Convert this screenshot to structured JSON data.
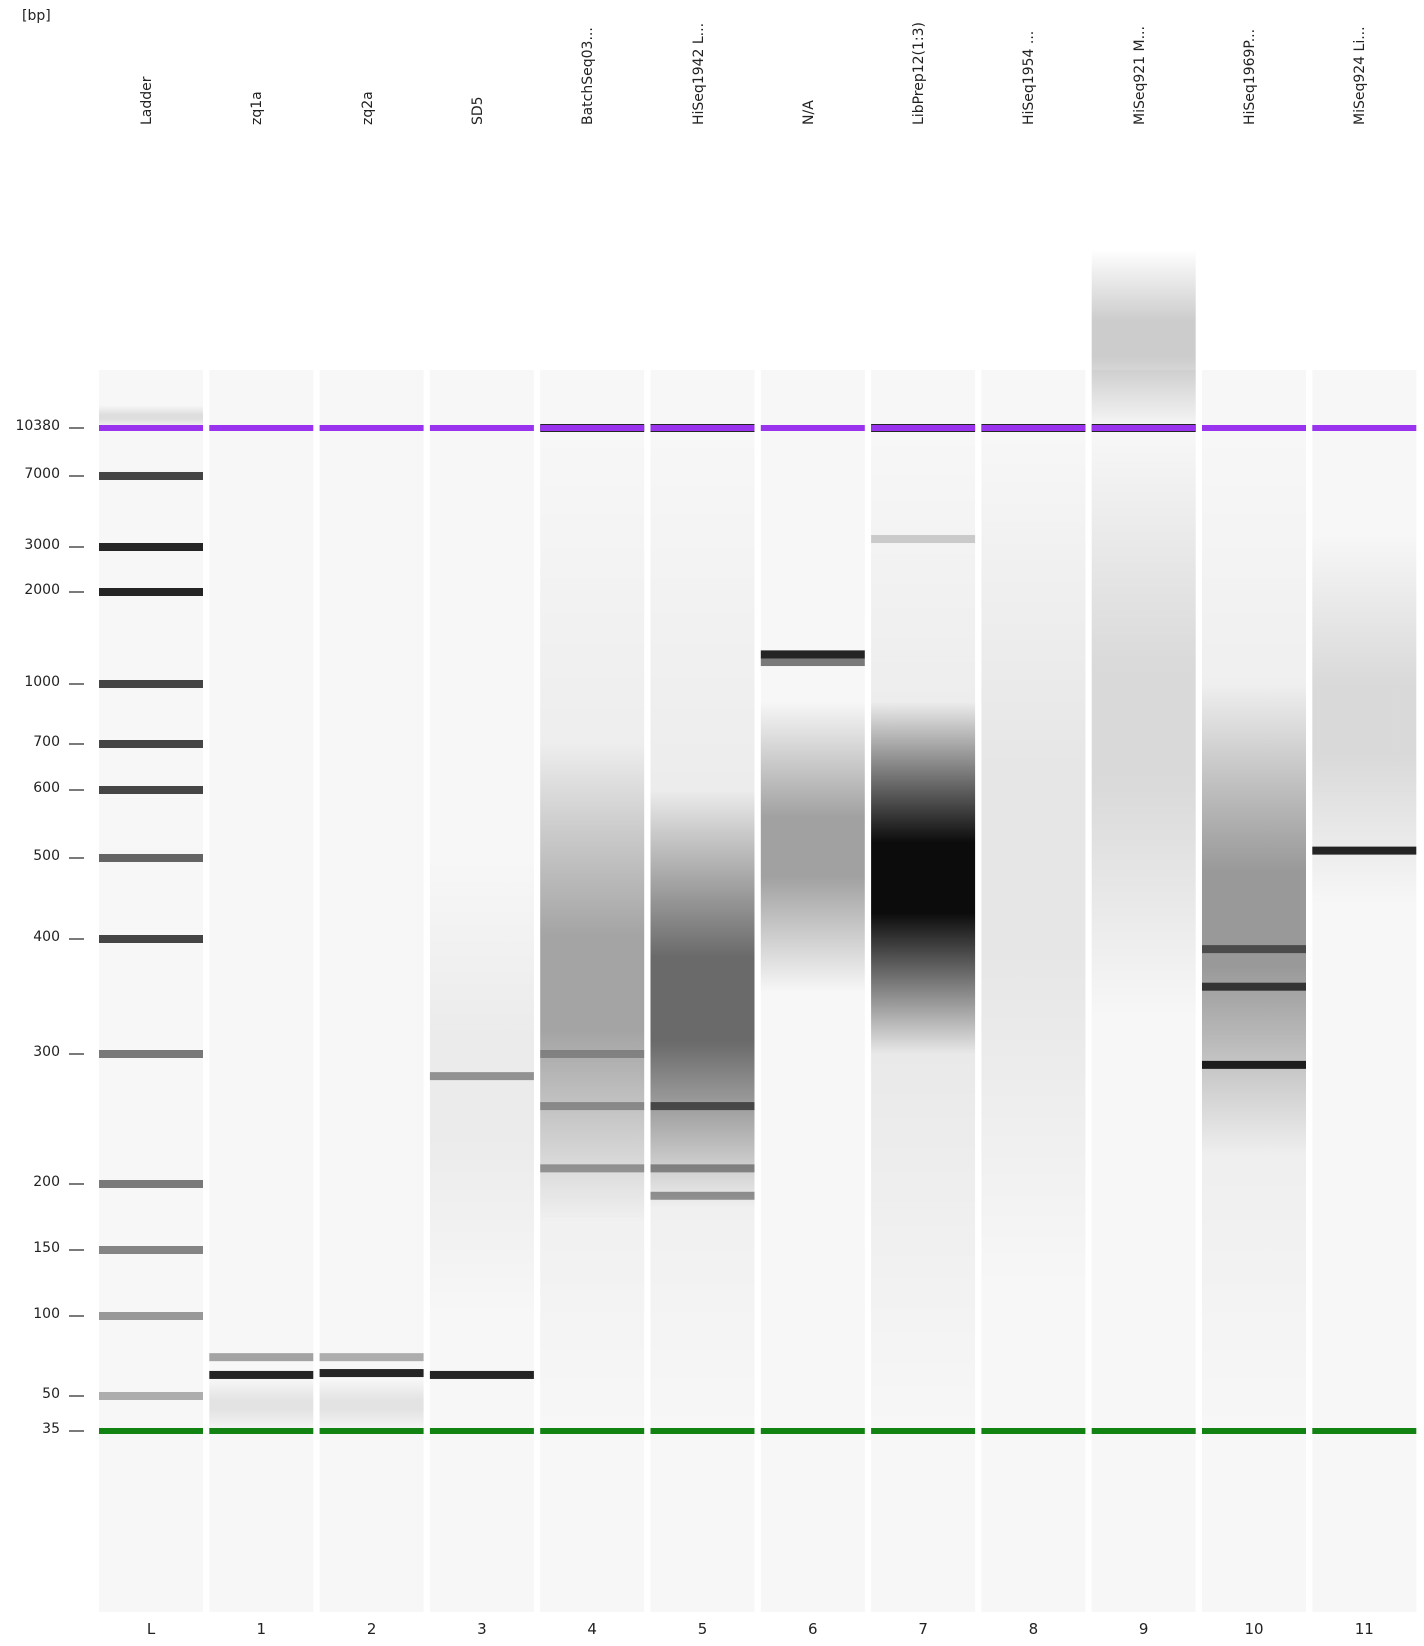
{
  "chart_data": {
    "type": "gel-image",
    "y_unit": "[bp]",
    "y_scale": "log",
    "y_ticks": [
      10380,
      7000,
      3000,
      2000,
      1000,
      700,
      600,
      500,
      400,
      300,
      200,
      150,
      100,
      50,
      35
    ],
    "upper_marker": {
      "size_bp": 10380,
      "color": "#9933ee"
    },
    "lower_marker": {
      "size_bp": 35,
      "color": "#128212"
    },
    "lanes": [
      {
        "label": "Ladder",
        "number": "L",
        "bands": [
          {
            "bp": 7000,
            "i": 0.85
          },
          {
            "bp": 3000,
            "i": 1
          },
          {
            "bp": 2000,
            "i": 1
          },
          {
            "bp": 1000,
            "i": 0.85
          },
          {
            "bp": 700,
            "i": 0.85
          },
          {
            "bp": 600,
            "i": 0.85
          },
          {
            "bp": 500,
            "i": 0.7
          },
          {
            "bp": 400,
            "i": 0.85
          },
          {
            "bp": 300,
            "i": 0.6
          },
          {
            "bp": 200,
            "i": 0.6
          },
          {
            "bp": 150,
            "i": 0.55
          },
          {
            "bp": 100,
            "i": 0.45
          },
          {
            "bp": 50,
            "i": 0.35
          }
        ],
        "smears": [
          {
            "from": 10380,
            "to": 12500,
            "i": 0.1
          }
        ]
      },
      {
        "label": "zq1a",
        "number": "1",
        "bands": [
          {
            "bp": 70,
            "i": 0.4
          },
          {
            "bp": 60,
            "i": 1
          }
        ],
        "smears": [
          {
            "from": 35,
            "to": 58,
            "i": 0.08
          }
        ]
      },
      {
        "label": "zq2a",
        "number": "2",
        "bands": [
          {
            "bp": 70,
            "i": 0.35
          },
          {
            "bp": 61,
            "i": 1
          }
        ],
        "smears": [
          {
            "from": 35,
            "to": 58,
            "i": 0.08
          }
        ]
      },
      {
        "label": "SD5",
        "number": "3",
        "bands": [
          {
            "bp": 280,
            "i": 0.45
          },
          {
            "bp": 60,
            "i": 1
          }
        ],
        "smears": [
          {
            "from": 100,
            "to": 500,
            "i": 0.05
          }
        ]
      },
      {
        "label": "BatchSeq03...",
        "number": "4",
        "bands": [
          {
            "bp": 10380,
            "i": 1
          },
          {
            "bp": 210,
            "i": 0.4
          },
          {
            "bp": 255,
            "i": 0.35
          },
          {
            "bp": 300,
            "i": 0.3
          }
        ],
        "smears": [
          {
            "from": 170,
            "to": 700,
            "i": 0.3
          },
          {
            "from": 35,
            "to": 10000,
            "i": 0.05
          }
        ]
      },
      {
        "label": "HiSeq1942 L...",
        "number": "5",
        "bands": [
          {
            "bp": 10380,
            "i": 1
          },
          {
            "bp": 190,
            "i": 0.45
          },
          {
            "bp": 210,
            "i": 0.45
          },
          {
            "bp": 255,
            "i": 0.65
          }
        ],
        "smears": [
          {
            "from": 180,
            "to": 600,
            "i": 0.55
          },
          {
            "from": 35,
            "to": 10000,
            "i": 0.05
          }
        ]
      },
      {
        "label": "N/A",
        "number": "6",
        "bands": [
          {
            "bp": 1250,
            "i": 1
          },
          {
            "bp": 1180,
            "i": 0.6
          }
        ],
        "smears": [
          {
            "from": 350,
            "to": 900,
            "i": 0.35
          }
        ]
      },
      {
        "label": "LibPrep12(1:3)",
        "number": "7",
        "bands": [
          {
            "bp": 10380,
            "i": 1
          },
          {
            "bp": 3300,
            "i": 0.2
          }
        ],
        "smears": [
          {
            "from": 300,
            "to": 900,
            "i": 0.95
          },
          {
            "from": 35,
            "to": 10000,
            "i": 0.06
          }
        ]
      },
      {
        "label": "HiSeq1954 ...",
        "number": "8",
        "bands": [
          {
            "bp": 10380,
            "i": 1
          }
        ],
        "smears": [
          {
            "from": 120,
            "to": 10000,
            "i": 0.07
          }
        ]
      },
      {
        "label": "MiSeq921 M...",
        "number": "9",
        "bands": [
          {
            "bp": 10380,
            "i": 1
          }
        ],
        "smears": [
          {
            "from": 10380,
            "to": 45000,
            "i": 0.2
          },
          {
            "from": 330,
            "to": 10000,
            "i": 0.12
          }
        ]
      },
      {
        "label": "HiSeq1969P...",
        "number": "10",
        "bands": [
          {
            "bp": 290,
            "i": 1
          },
          {
            "bp": 355,
            "i": 0.8
          },
          {
            "bp": 390,
            "i": 0.6
          }
        ],
        "smears": [
          {
            "from": 220,
            "to": 1000,
            "i": 0.35
          },
          {
            "from": 35,
            "to": 10000,
            "i": 0.05
          }
        ]
      },
      {
        "label": "MiSeq924 Li...",
        "number": "11",
        "bands": [
          {
            "bp": 510,
            "i": 1
          }
        ],
        "smears": [
          {
            "from": 440,
            "to": 3500,
            "i": 0.12
          }
        ]
      }
    ]
  }
}
